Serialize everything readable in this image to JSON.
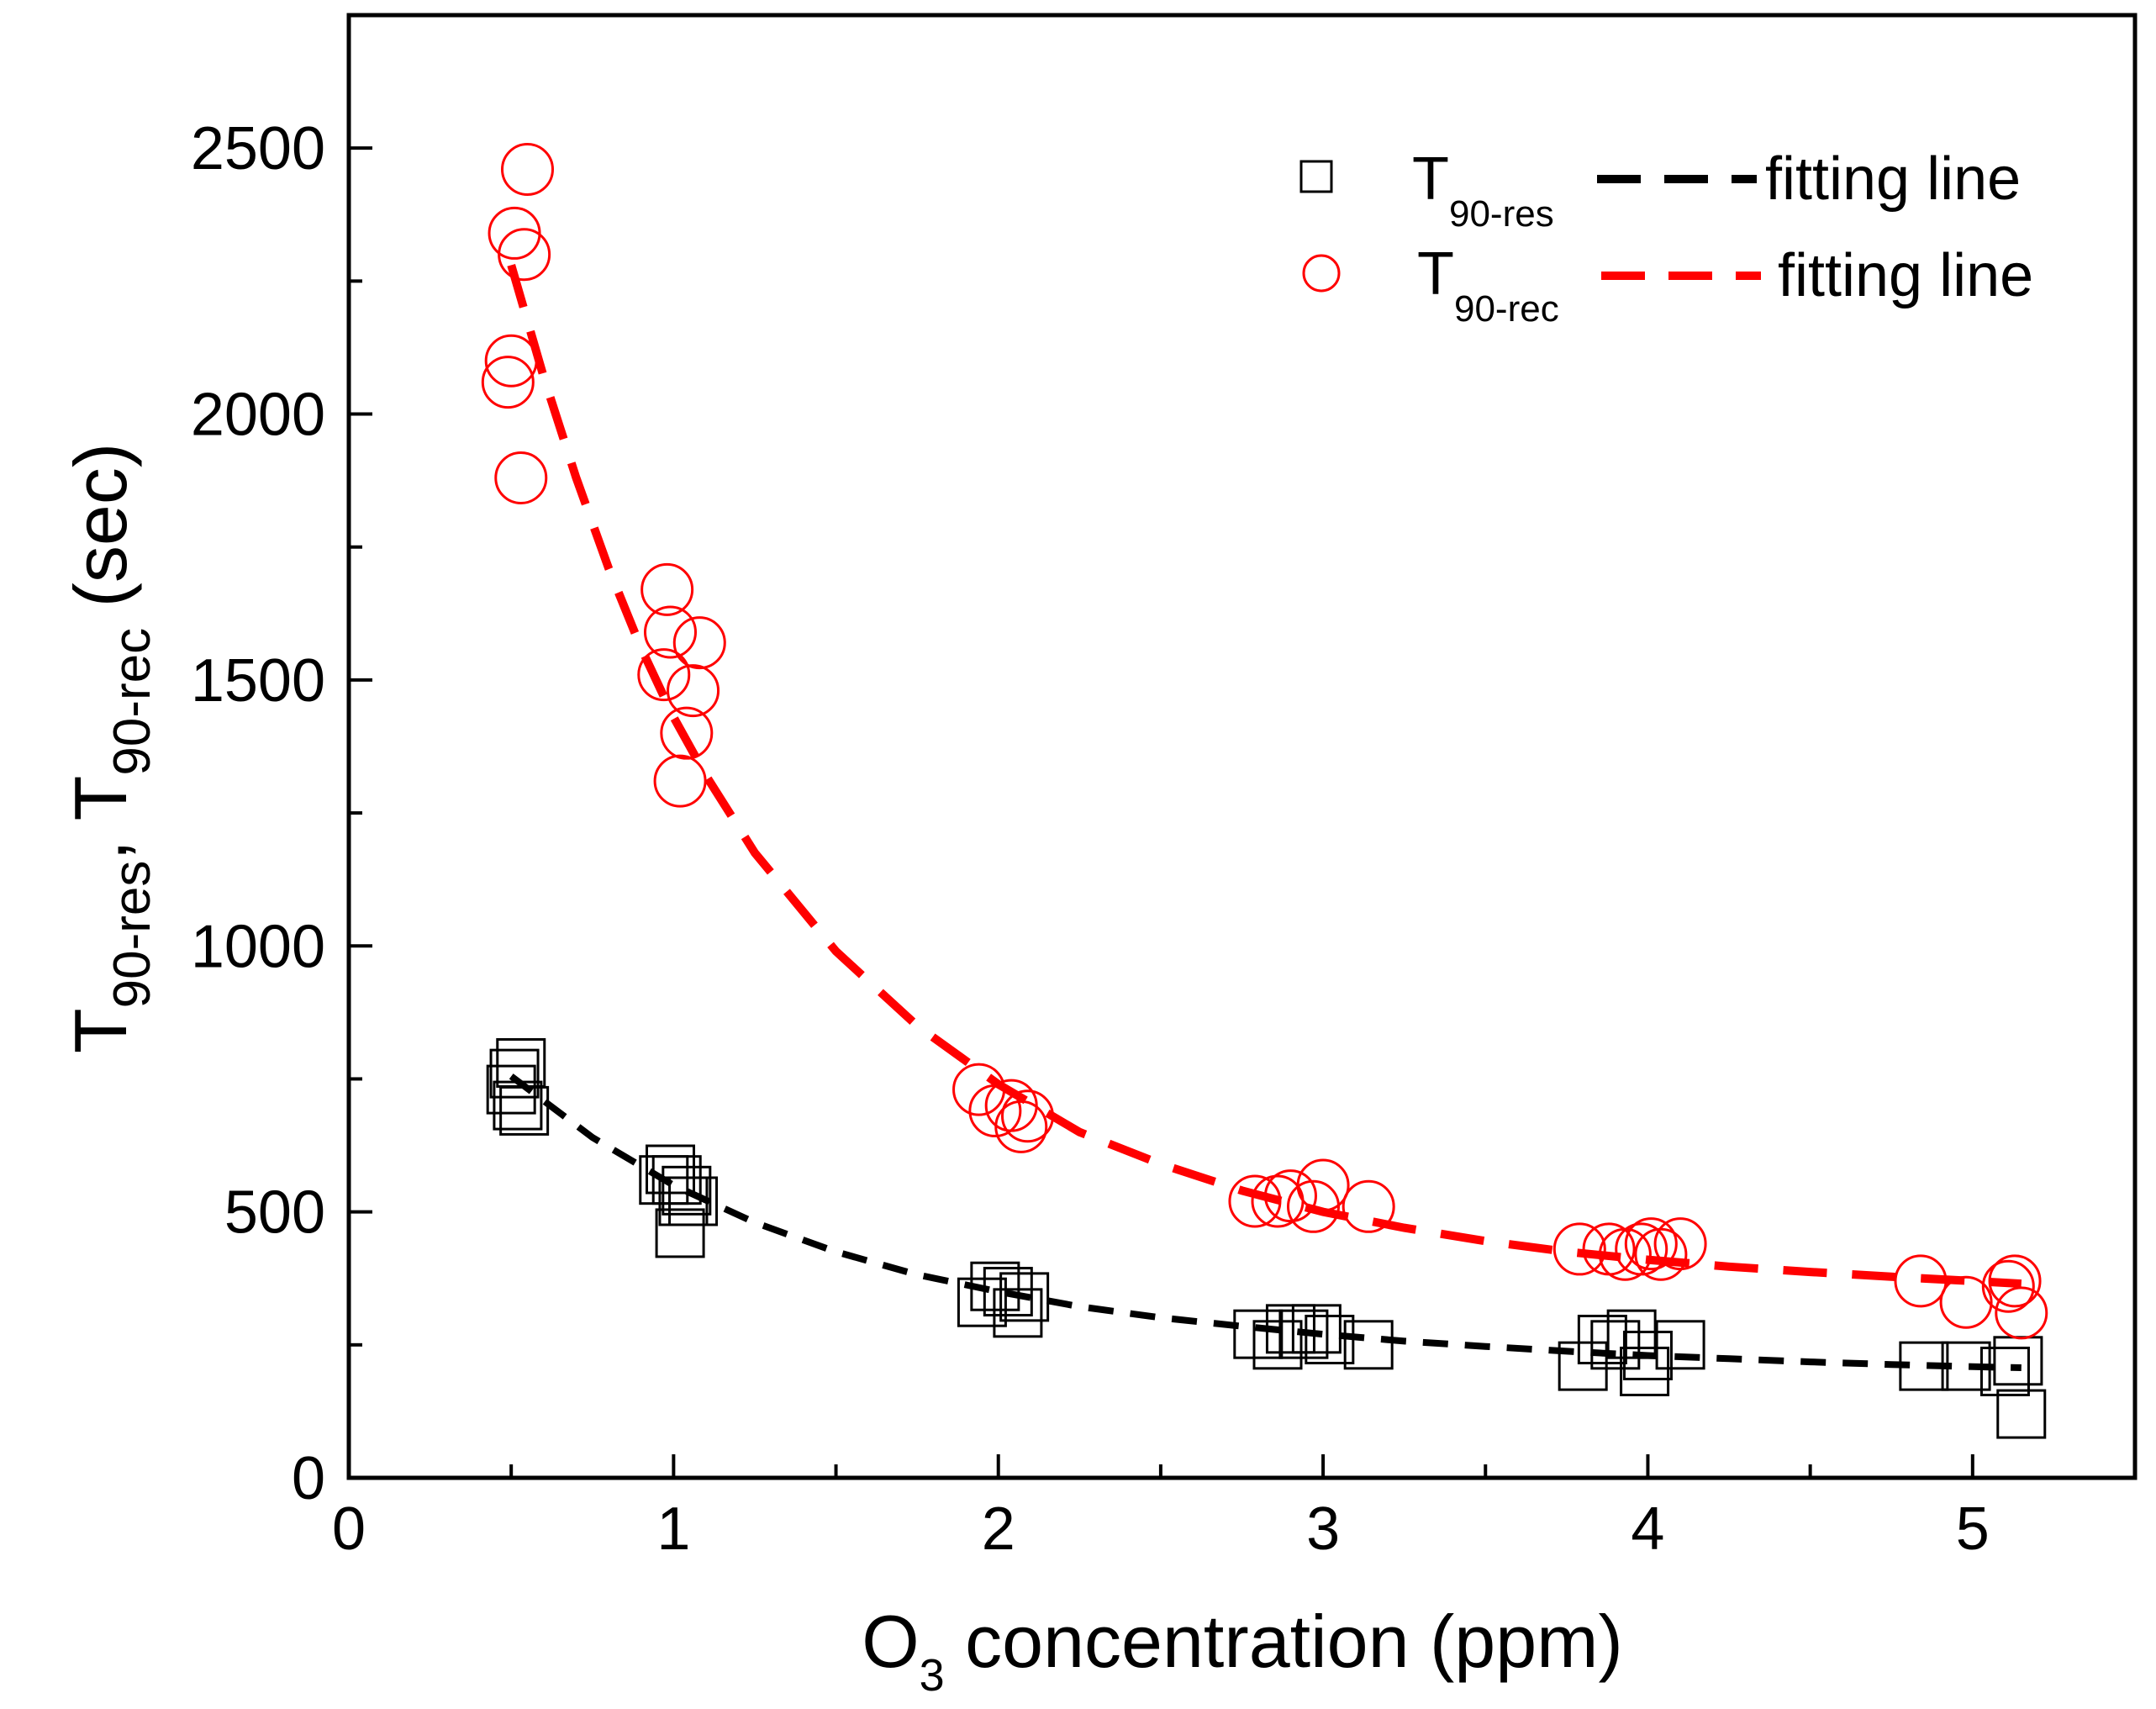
{
  "chart_data": {
    "type": "scatter",
    "title": "",
    "xlabel": {
      "main": "O",
      "sub": "3",
      "rest": " concentration (ppm)"
    },
    "ylabel": {
      "p1": "T",
      "s1": "90-res",
      "p2": ", T",
      "s2": "90-rec",
      "p3": " (sec)"
    },
    "xlim": [
      0,
      5.5
    ],
    "ylim": [
      0,
      2750
    ],
    "x_ticks": [
      0,
      1,
      2,
      3,
      4,
      5
    ],
    "x_tick_labels": [
      "0",
      "1",
      "2",
      "3",
      "4",
      "5"
    ],
    "y_ticks": [
      0,
      500,
      1000,
      1500,
      2000,
      2500
    ],
    "y_tick_labels": [
      "0",
      "500",
      "1000",
      "1500",
      "2000",
      "2500"
    ],
    "grid": false,
    "legend_position": "top-right",
    "series": [
      {
        "name": "T90-res",
        "legend_main": "T",
        "legend_sub": "90-res",
        "marker": "square",
        "color": "#000000",
        "x": [
          0.5,
          0.51,
          0.53,
          0.52,
          0.54,
          0.97,
          0.99,
          1.01,
          1.03,
          1.04,
          1.06,
          1.02,
          1.95,
          1.99,
          2.03,
          2.06,
          2.08,
          2.8,
          2.86,
          2.9,
          2.94,
          2.98,
          3.02,
          3.14,
          3.8,
          3.86,
          3.9,
          3.95,
          3.99,
          4.0,
          4.1,
          4.85,
          4.98,
          5.1,
          5.14,
          5.15
        ],
        "y": [
          730,
          760,
          780,
          700,
          690,
          560,
          580,
          560,
          520,
          540,
          520,
          460,
          330,
          360,
          350,
          310,
          340,
          270,
          250,
          280,
          270,
          280,
          260,
          250,
          210,
          260,
          250,
          270,
          200,
          230,
          250,
          210,
          210,
          200,
          220,
          120
        ]
      },
      {
        "name": "T90-res fitting line",
        "legend_label": "fitting line",
        "line": "dashed",
        "color": "#000000",
        "x": [
          0.5,
          0.75,
          1.0,
          1.25,
          1.5,
          1.75,
          2.0,
          2.25,
          2.5,
          2.75,
          3.0,
          3.25,
          3.5,
          3.75,
          4.0,
          4.25,
          4.5,
          4.75,
          5.0,
          5.15
        ],
        "y": [
          755,
          640,
          550,
          480,
          425,
          382,
          350,
          322,
          301,
          285,
          270,
          257,
          247,
          238,
          230,
          224,
          218,
          213,
          209,
          207
        ]
      },
      {
        "name": "T90-rec",
        "legend_main": "T",
        "legend_sub": "90-rec",
        "marker": "circle",
        "color": "#ff0000",
        "x": [
          0.49,
          0.5,
          0.51,
          0.53,
          0.54,
          0.55,
          0.97,
          0.98,
          0.99,
          1.02,
          1.04,
          1.06,
          1.08,
          1.94,
          1.99,
          2.04,
          2.07,
          2.09,
          2.79,
          2.86,
          2.9,
          2.97,
          3.0,
          3.14,
          3.79,
          3.88,
          3.93,
          3.98,
          4.01,
          4.04,
          4.1,
          4.84,
          4.98,
          5.11,
          5.13,
          5.15
        ],
        "y": [
          2060,
          2100,
          2340,
          1880,
          2300,
          2460,
          1510,
          1670,
          1590,
          1310,
          1400,
          1480,
          1570,
          730,
          690,
          700,
          660,
          680,
          520,
          520,
          530,
          510,
          550,
          510,
          430,
          430,
          420,
          430,
          440,
          420,
          440,
          370,
          330,
          360,
          370,
          310
        ]
      },
      {
        "name": "T90-rec fitting line",
        "legend_label": "fitting line",
        "line": "dashed",
        "color": "#ff0000",
        "x": [
          0.5,
          0.6,
          0.7,
          0.8,
          0.9,
          1.0,
          1.1,
          1.25,
          1.5,
          1.75,
          2.0,
          2.25,
          2.5,
          2.75,
          3.0,
          3.25,
          3.5,
          3.75,
          4.0,
          4.25,
          4.5,
          4.75,
          5.0,
          5.15
        ],
        "y": [
          2280,
          2070,
          1880,
          1710,
          1560,
          1430,
          1320,
          1175,
          990,
          850,
          740,
          650,
          590,
          540,
          500,
          470,
          445,
          425,
          410,
          397,
          387,
          378,
          370,
          365
        ]
      }
    ]
  }
}
